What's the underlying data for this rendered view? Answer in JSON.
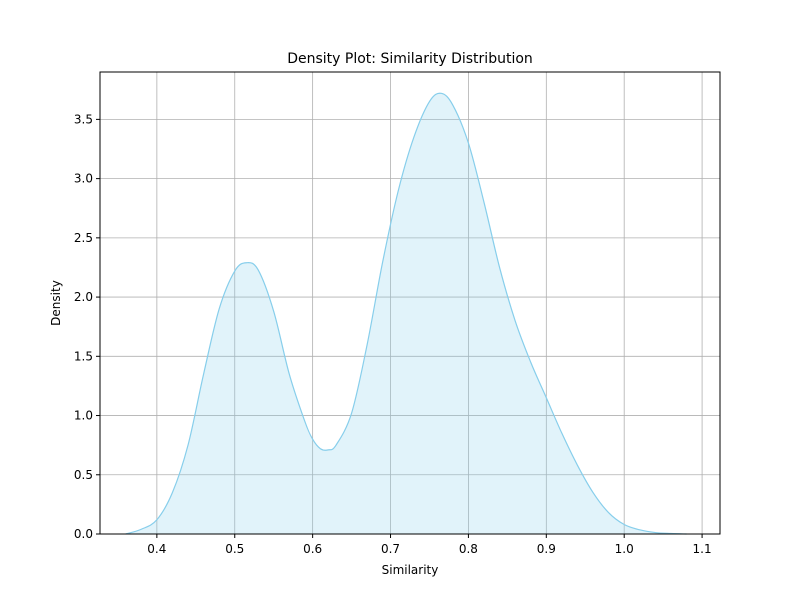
{
  "chart_data": {
    "type": "area",
    "title": "Density Plot: Similarity Distribution",
    "xlabel": "Similarity",
    "ylabel": "Density",
    "xlim": [
      0.327,
      1.123
    ],
    "ylim": [
      0,
      3.9
    ],
    "xticks": [
      0.4,
      0.5,
      0.6,
      0.7,
      0.8,
      0.9,
      1.0,
      1.1
    ],
    "xtick_labels": [
      "0.4",
      "0.5",
      "0.6",
      "0.7",
      "0.8",
      "0.9",
      "1.0",
      "1.1"
    ],
    "yticks": [
      0,
      0.5,
      1.0,
      1.5,
      2.0,
      2.5,
      3.0,
      3.5
    ],
    "ytick_labels": [
      "0.0",
      "0.5",
      "1.0",
      "1.5",
      "2.0",
      "2.5",
      "3.0",
      "3.5"
    ],
    "grid": true,
    "line_color": "#87CEEB",
    "fill_color": "#87CEEB",
    "fill_opacity": 0.25,
    "series": [
      {
        "x": [
          0.36,
          0.38,
          0.4,
          0.42,
          0.44,
          0.46,
          0.48,
          0.5,
          0.515,
          0.53,
          0.55,
          0.57,
          0.59,
          0.6,
          0.61,
          0.62,
          0.63,
          0.65,
          0.67,
          0.69,
          0.71,
          0.73,
          0.75,
          0.765,
          0.78,
          0.8,
          0.82,
          0.84,
          0.86,
          0.88,
          0.9,
          0.92,
          0.94,
          0.96,
          0.98,
          1.0,
          1.02,
          1.04,
          1.06,
          1.08
        ],
        "y": [
          0.0,
          0.04,
          0.12,
          0.35,
          0.75,
          1.35,
          1.9,
          2.22,
          2.29,
          2.23,
          1.88,
          1.35,
          0.95,
          0.8,
          0.72,
          0.71,
          0.75,
          1.02,
          1.6,
          2.3,
          2.9,
          3.35,
          3.65,
          3.72,
          3.62,
          3.3,
          2.8,
          2.25,
          1.8,
          1.45,
          1.15,
          0.85,
          0.58,
          0.35,
          0.18,
          0.08,
          0.035,
          0.012,
          0.004,
          0.0
        ]
      }
    ]
  }
}
